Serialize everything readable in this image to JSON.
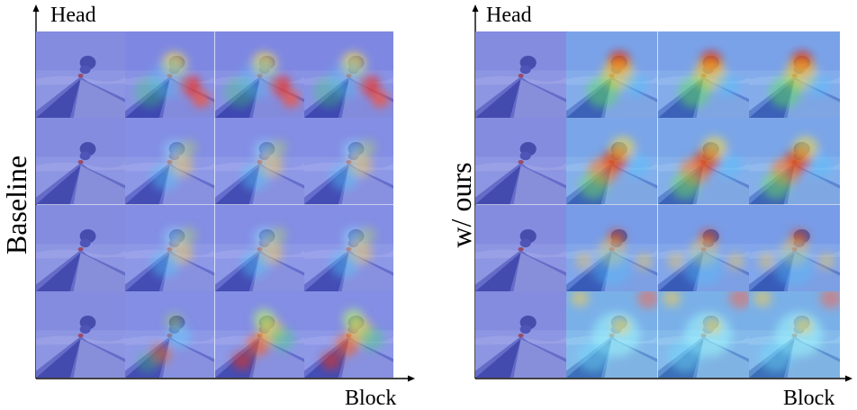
{
  "panels": [
    {
      "id": "left",
      "side_label": "Baseline",
      "y_axis_label": "Head",
      "x_axis_label": "Block",
      "grid": [
        [
          "plain",
          "hot-right",
          "hot-right",
          "hot-right"
        ],
        [
          "plain",
          "mild",
          "mild",
          "mild"
        ],
        [
          "plain",
          "mild",
          "mild",
          "mild"
        ],
        [
          "plain",
          "diag",
          "diag-strong",
          "diag-strong"
        ]
      ]
    },
    {
      "id": "right",
      "side_label": "w/ ours",
      "y_axis_label": "Head",
      "x_axis_label": "Block",
      "grid": [
        [
          "plain",
          "focus",
          "focus",
          "focus"
        ],
        [
          "plain",
          "focus-wide",
          "focus-wide",
          "focus-wide"
        ],
        [
          "plain",
          "band",
          "band",
          "band"
        ],
        [
          "plain",
          "bright",
          "bright",
          "bright"
        ]
      ]
    }
  ]
}
